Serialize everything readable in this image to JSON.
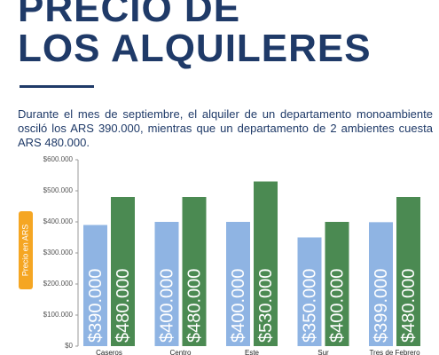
{
  "header": {
    "title_lines": [
      "PRECIO DE",
      "LOS ALQUILERES"
    ],
    "description": "Durante el mes de septiembre, el alquiler de un departamento monoambiente osciló los ARS 390.000, mientras que un departamento de 2 ambientes cuesta ARS 480.000."
  },
  "chart_data": {
    "type": "bar",
    "y_label": "Precio en ARS",
    "categories": [
      "Caseros",
      "Centro",
      "Este",
      "Sur",
      "Tres de Febrero"
    ],
    "series": [
      {
        "color": "#8fb4e3",
        "values": [
          390000,
          400000,
          400000,
          350000,
          399000
        ],
        "value_labels": [
          "$390.000",
          "$400.000",
          "$400.000",
          "$350.000",
          "$399.000"
        ]
      },
      {
        "color": "#4b8a52",
        "values": [
          480000,
          480000,
          530000,
          400000,
          480000
        ],
        "value_labels": [
          "$480.000",
          "$480.000",
          "$530.000",
          "$400.000",
          "$480.000"
        ]
      }
    ],
    "ylim": [
      0,
      600000
    ],
    "yticks": [
      {
        "value": 0,
        "label": "$0"
      },
      {
        "value": 100000,
        "label": "$100.000"
      },
      {
        "value": 200000,
        "label": "$200.000"
      },
      {
        "value": 300000,
        "label": "$300.000"
      },
      {
        "value": 400000,
        "label": "$400.000"
      },
      {
        "value": 500000,
        "label": "$500.000"
      },
      {
        "value": 600000,
        "label": "$600.000"
      }
    ],
    "grid": false
  }
}
